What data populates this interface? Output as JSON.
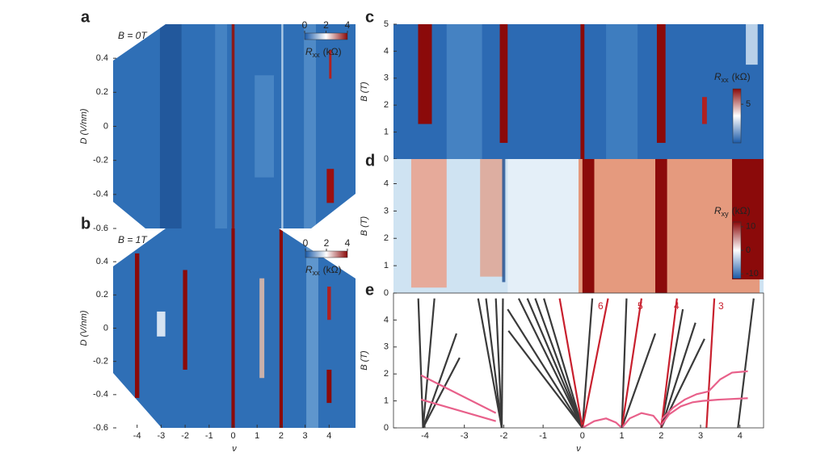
{
  "chart_data": [
    {
      "type": "heatmap",
      "panel": "a",
      "annotation": "B = 0T",
      "ylabel": "D (V/nm)",
      "xlim": [
        -5,
        5.1
      ],
      "ylim": [
        -0.6,
        0.6
      ],
      "yticks": [
        0.4,
        0.2,
        0,
        -0.2,
        -0.4,
        -0.6
      ],
      "colorbar": {
        "symbol": "R",
        "subscript": "xx",
        "unit": "(kΩ)",
        "lim": [
          0,
          4
        ],
        "ticks": [
          0,
          2,
          4
        ],
        "orientation": "horizontal",
        "colors": [
          "#1a5aa8",
          "#ffffff",
          "#8b0a0a"
        ]
      }
    },
    {
      "type": "heatmap",
      "panel": "b",
      "annotation": "B = 1T",
      "ylabel": "D (V/nm)",
      "xlabel": "ν",
      "xlim": [
        -5,
        5.1
      ],
      "ylim": [
        -0.6,
        0.6
      ],
      "xticks": [
        -4,
        -3,
        -2,
        -1,
        0,
        1,
        2,
        3,
        4
      ],
      "yticks": [
        0.4,
        0.2,
        0,
        -0.2,
        -0.4,
        -0.6
      ],
      "colorbar": {
        "symbol": "R",
        "subscript": "xx",
        "unit": "(kΩ)",
        "lim": [
          0,
          4
        ],
        "ticks": [
          0,
          2,
          4
        ],
        "orientation": "horizontal",
        "colors": [
          "#1a5aa8",
          "#ffffff",
          "#8b0a0a"
        ]
      }
    },
    {
      "type": "heatmap",
      "panel": "c",
      "ylabel": "B (T)",
      "xlim": [
        -4.8,
        4.6
      ],
      "ylim": [
        0,
        5
      ],
      "yticks": [
        0,
        1,
        2,
        3,
        4,
        5
      ],
      "colorbar": {
        "symbol": "R",
        "subscript": "xx",
        "unit": "(kΩ)",
        "lim": [
          0,
          7
        ],
        "ticks": [
          5
        ],
        "orientation": "vertical",
        "colors": [
          "#1a5aa8",
          "#ffffff",
          "#8b0a0a"
        ]
      }
    },
    {
      "type": "heatmap",
      "panel": "d",
      "ylabel": "B (T)",
      "xlim": [
        -4.8,
        4.6
      ],
      "ylim": [
        0,
        4.9
      ],
      "yticks": [
        0,
        1,
        2,
        3,
        4
      ],
      "colorbar": {
        "symbol": "R",
        "subscript": "xy",
        "unit": "(kΩ)",
        "lim": [
          -12,
          12
        ],
        "ticks": [
          10,
          0,
          -10
        ],
        "orientation": "vertical",
        "colors": [
          "#1a5aa8",
          "#ffffff",
          "#8b0a0a"
        ]
      }
    },
    {
      "type": "line",
      "panel": "e",
      "ylabel": "B (T)",
      "xlabel": "ν",
      "xlim": [
        -4.8,
        4.6
      ],
      "ylim": [
        0,
        5
      ],
      "xticks": [
        -4,
        -3,
        -2,
        -1,
        0,
        1,
        2,
        3,
        4
      ],
      "yticks": [
        0,
        1,
        2,
        3,
        4
      ],
      "annotations": [
        "6",
        "5",
        "4",
        "3"
      ],
      "annotation_color": "#c8202e",
      "series": [
        {
          "color": "#3a3a3a",
          "x": [
            -4.05,
            -4.17
          ],
          "values": [
            0,
            4.8
          ]
        },
        {
          "color": "#3a3a3a",
          "x": [
            -4.05,
            -3.76
          ],
          "values": [
            0,
            4.8
          ]
        },
        {
          "color": "#3a3a3a",
          "x": [
            -4.05,
            -3.2
          ],
          "values": [
            0,
            3.5
          ]
        },
        {
          "color": "#3a3a3a",
          "x": [
            -4.05,
            -3.12
          ],
          "values": [
            0,
            2.6
          ]
        },
        {
          "color": "#3a3a3a",
          "x": [
            -2.05,
            -2.65
          ],
          "values": [
            0,
            4.8
          ]
        },
        {
          "color": "#3a3a3a",
          "x": [
            -2.05,
            -2.45
          ],
          "values": [
            0,
            4.8
          ]
        },
        {
          "color": "#3a3a3a",
          "x": [
            -2.05,
            -2.2
          ],
          "values": [
            0,
            4.8
          ]
        },
        {
          "color": "#3a3a3a",
          "x": [
            -2.05,
            -2.02
          ],
          "values": [
            0,
            4.8
          ]
        },
        {
          "color": "#3a3a3a",
          "x": [
            0,
            -1.9
          ],
          "values": [
            0,
            4.4
          ]
        },
        {
          "color": "#3a3a3a",
          "x": [
            0,
            -1.88
          ],
          "values": [
            0,
            3.6
          ]
        },
        {
          "color": "#3a3a3a",
          "x": [
            0,
            -1.62
          ],
          "values": [
            0,
            4.8
          ]
        },
        {
          "color": "#3a3a3a",
          "x": [
            0,
            -1.4
          ],
          "values": [
            0,
            4.8
          ]
        },
        {
          "color": "#3a3a3a",
          "x": [
            0,
            -1.2
          ],
          "values": [
            0,
            4.8
          ]
        },
        {
          "color": "#3a3a3a",
          "x": [
            0,
            -0.98
          ],
          "values": [
            0,
            4.8
          ]
        },
        {
          "color": "#3a3a3a",
          "x": [
            0,
            0.25
          ],
          "values": [
            0,
            4.8
          ]
        },
        {
          "color": "#3a3a3a",
          "x": [
            1,
            1.12
          ],
          "values": [
            0,
            4.8
          ]
        },
        {
          "color": "#3a3a3a",
          "x": [
            1,
            1.85
          ],
          "values": [
            0,
            3.5
          ]
        },
        {
          "color": "#3a3a3a",
          "x": [
            2,
            2.55
          ],
          "values": [
            0,
            4.4
          ]
        },
        {
          "color": "#3a3a3a",
          "x": [
            2,
            2.87
          ],
          "values": [
            0,
            3.9
          ]
        },
        {
          "color": "#3a3a3a",
          "x": [
            2,
            3.1
          ],
          "values": [
            0,
            3.3
          ]
        },
        {
          "color": "#3a3a3a",
          "x": [
            3.95,
            4.35
          ],
          "values": [
            0,
            4.8
          ]
        },
        {
          "color": "#c8202e",
          "x": [
            0,
            -0.58
          ],
          "values": [
            0,
            4.8
          ]
        },
        {
          "color": "#c8202e",
          "x": [
            0,
            0.65
          ],
          "values": [
            0,
            4.8
          ]
        },
        {
          "color": "#c8202e",
          "x": [
            1,
            1.5
          ],
          "values": [
            0,
            4.8
          ]
        },
        {
          "color": "#c8202e",
          "x": [
            2,
            2.4
          ],
          "values": [
            0,
            4.8
          ]
        },
        {
          "color": "#c8202e",
          "x": [
            3.15,
            3.35
          ],
          "values": [
            0,
            4.8
          ]
        },
        {
          "color": "#e8608a",
          "x": [
            -4.1,
            -2.2
          ],
          "values": [
            1.95,
            0.55
          ]
        },
        {
          "color": "#e8608a",
          "x": [
            -4.1,
            -2.2
          ],
          "values": [
            1.05,
            0.25
          ]
        },
        {
          "color": "#e8608a",
          "x": [
            0,
            0.3,
            0.6,
            0.85,
            1,
            1.2,
            1.5,
            1.8,
            2,
            2.2,
            2.5,
            2.8,
            3.05,
            3.5,
            4.2
          ],
          "values": [
            0,
            0.25,
            0.35,
            0.2,
            0,
            0.35,
            0.55,
            0.45,
            0.1,
            0.5,
            0.8,
            0.95,
            1.0,
            1.05,
            1.1
          ]
        },
        {
          "color": "#e8608a",
          "x": [
            2,
            2.3,
            2.6,
            2.9,
            3.2,
            3.5,
            3.8,
            4.2
          ],
          "values": [
            0.3,
            0.75,
            1.05,
            1.25,
            1.35,
            1.8,
            2.05,
            2.1
          ]
        }
      ]
    }
  ]
}
